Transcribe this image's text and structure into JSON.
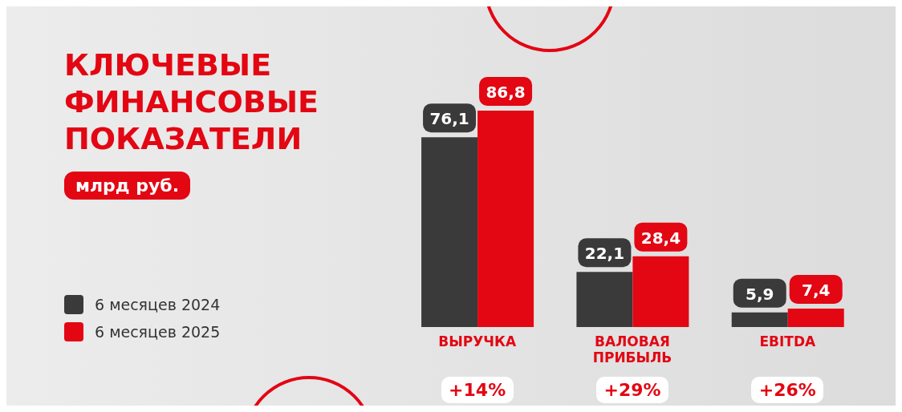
{
  "chart_data": {
    "type": "bar",
    "title": "КЛЮЧЕВЫЕ ФИНАНСОВЫЕ ПОКАЗАТЕЛИ",
    "subtitle": "млрд руб.",
    "categories": [
      "ВЫРУЧКА",
      "ВАЛОВАЯ ПРИБЫЛЬ",
      "EBITDA"
    ],
    "series": [
      {
        "name": "6 месяцев 2024",
        "color": "#3a3a3a",
        "values": [
          76.1,
          22.1,
          5.9
        ],
        "value_labels": [
          "76,1",
          "22,1",
          "5,9"
        ]
      },
      {
        "name": "6 месяцев 2025",
        "color": "#e30613",
        "values": [
          86.8,
          28.4,
          7.4
        ],
        "value_labels": [
          "86,8",
          "28,4",
          "7,4"
        ]
      }
    ],
    "annotations": [
      "+14%",
      "+29%",
      "+26%"
    ],
    "legend": "left",
    "grid": false
  }
}
